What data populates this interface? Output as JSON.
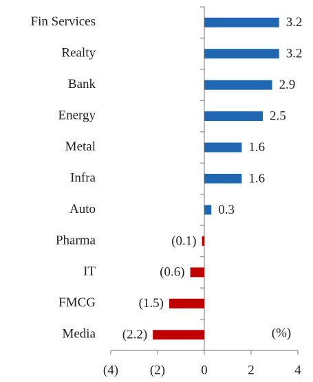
{
  "chart_data": {
    "type": "hbar",
    "categories": [
      "Fin Services",
      "Realty",
      "Bank",
      "Energy",
      "Metal",
      "Infra",
      "Auto",
      "Pharma",
      "IT",
      "FMCG",
      "Media"
    ],
    "values": [
      3.2,
      3.2,
      2.9,
      2.5,
      1.6,
      1.6,
      0.3,
      -0.1,
      -0.6,
      -1.5,
      -2.2
    ],
    "value_labels": [
      "3.2",
      "3.2",
      "2.9",
      "2.5",
      "1.6",
      "1.6",
      "0.3",
      "(0.1)",
      "(0.6)",
      "(1.5)",
      "(2.2)"
    ],
    "color": "#1f67b1",
    "negative_color": "#c00000",
    "xlim": [
      -4,
      4
    ],
    "xticks": [
      {
        "value": -4,
        "label": "(4)"
      },
      {
        "value": -2,
        "label": "(2)"
      },
      0,
      2,
      4
    ],
    "unit_label": "(%)"
  }
}
